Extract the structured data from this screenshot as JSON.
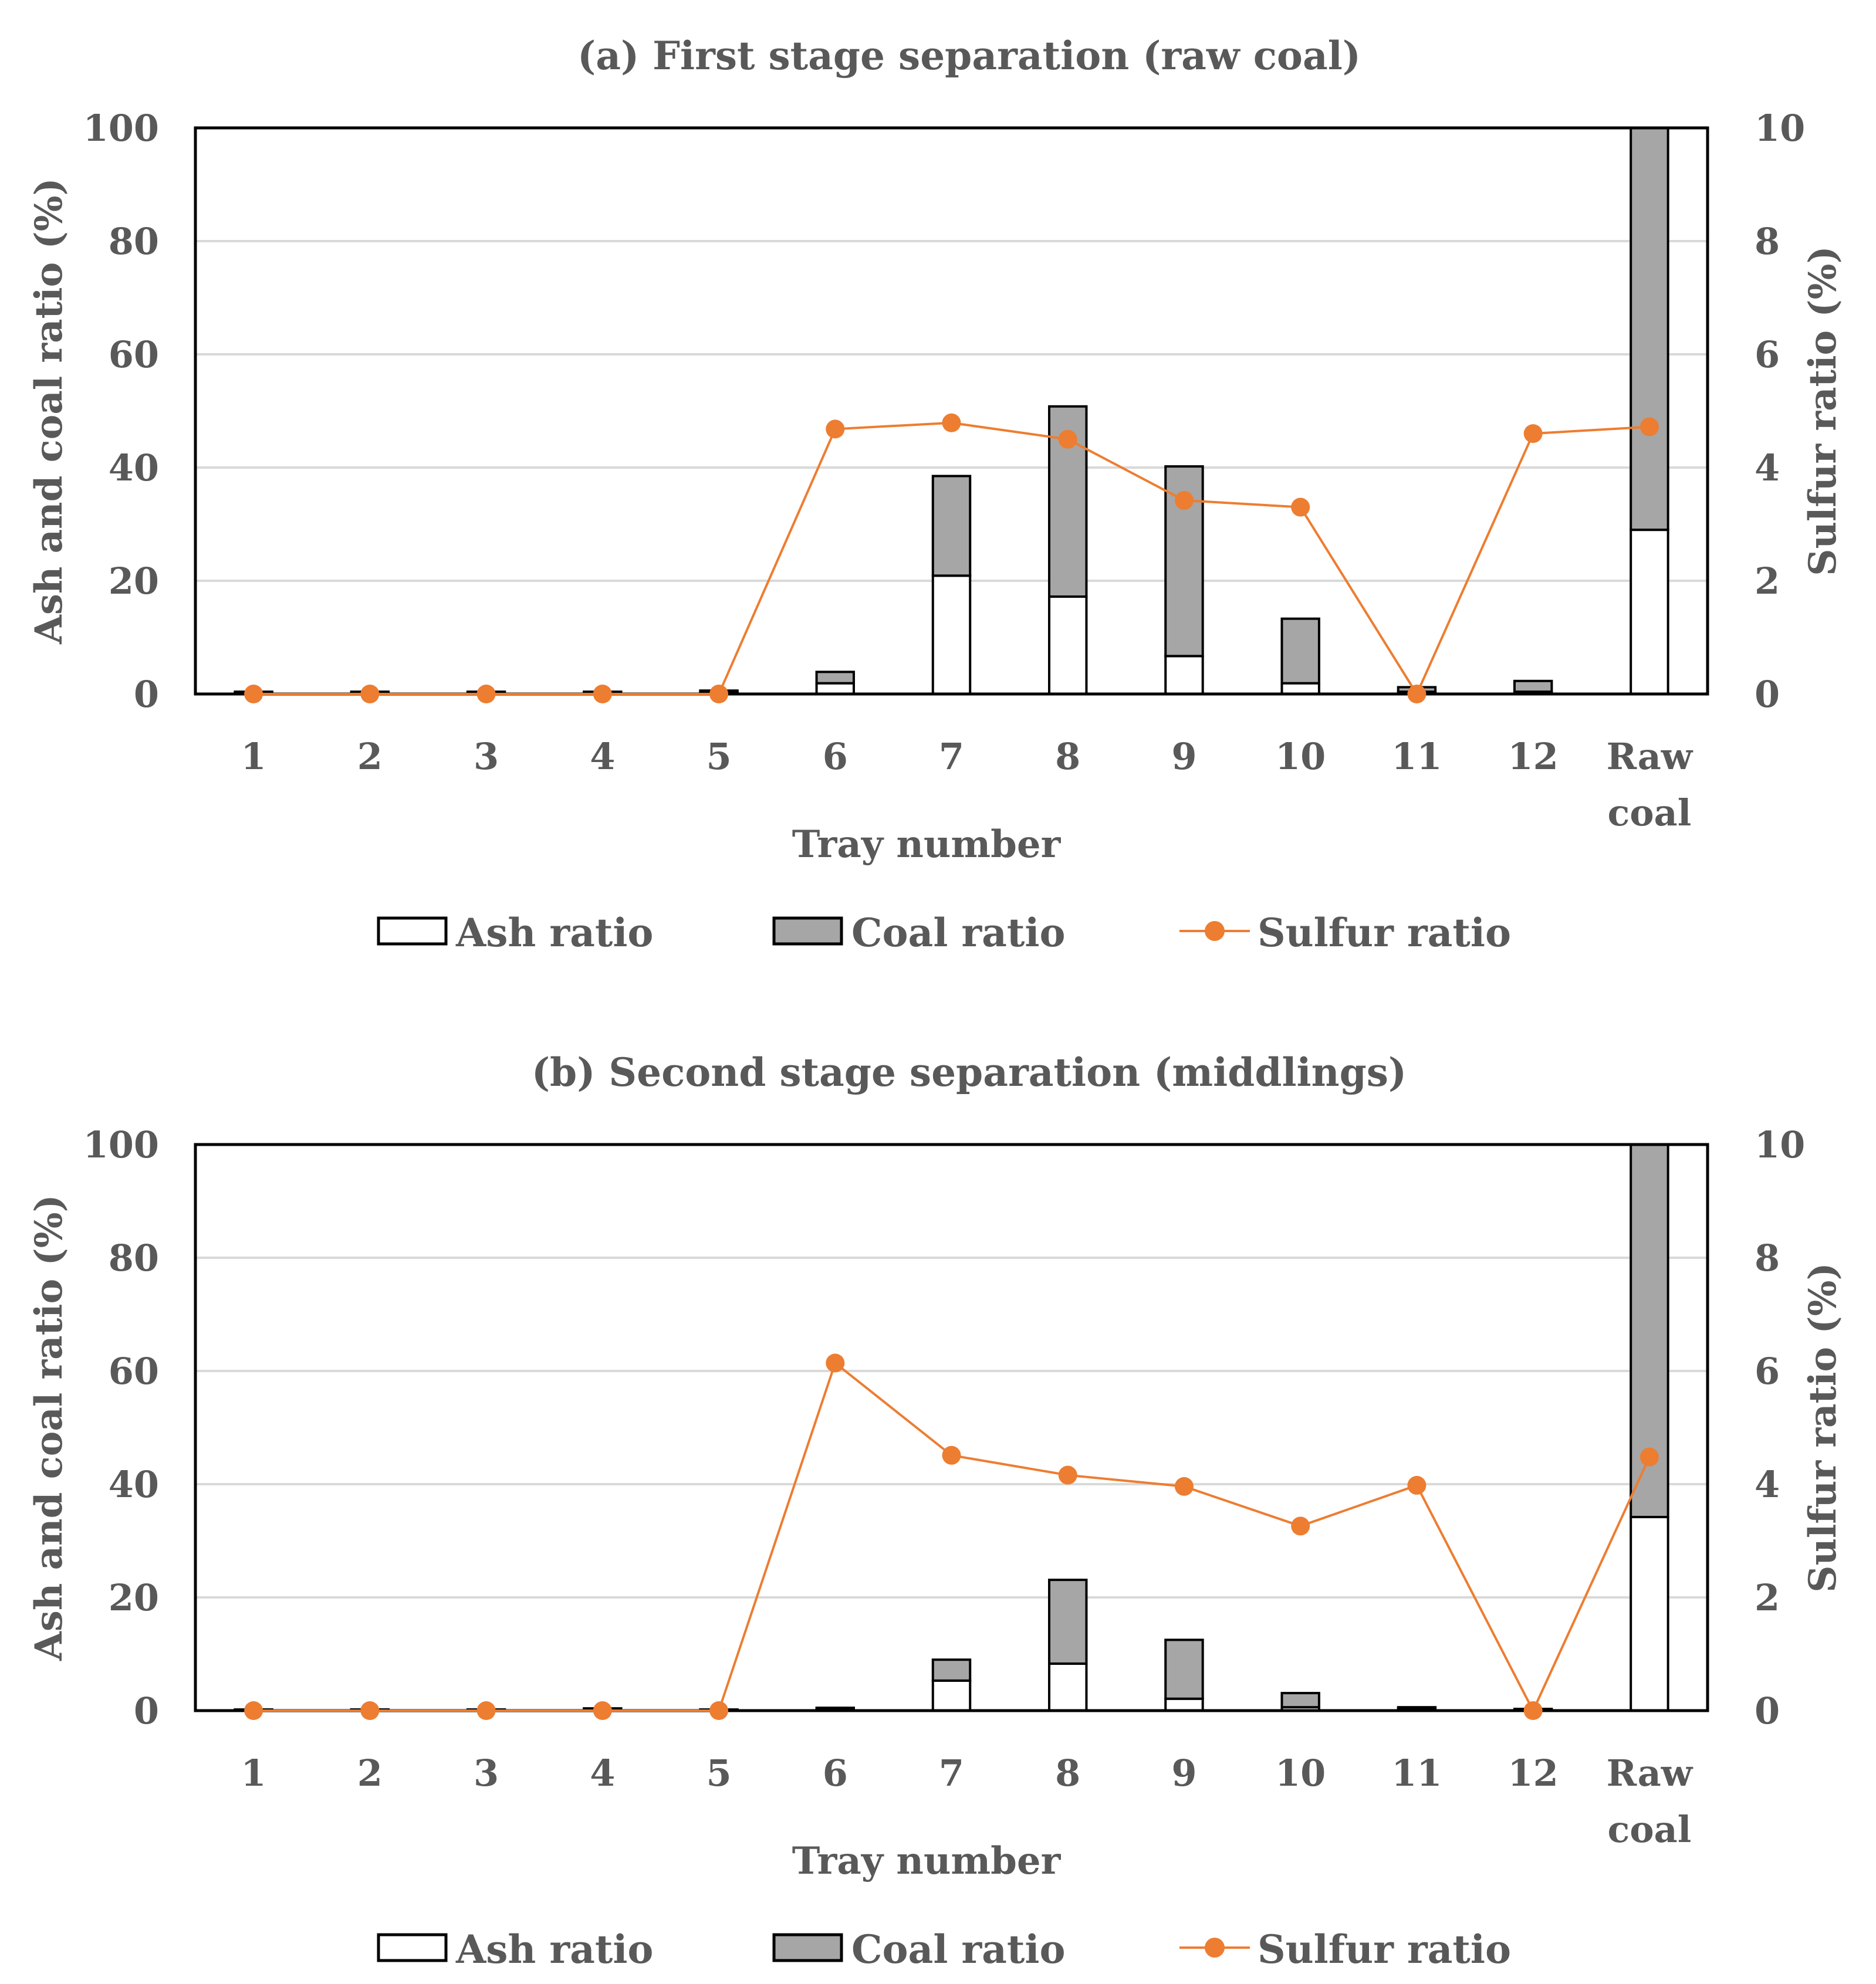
{
  "chart_data": [
    {
      "type": "bar",
      "title": "(a) First stage separation (raw coal)",
      "xlabel": "Tray number",
      "ylabel": "Ash  and coal ratio (%)",
      "y2label": "Sulfur ratio (%)",
      "categories": [
        "1",
        "2",
        "3",
        "4",
        "5",
        "6",
        "7",
        "8",
        "9",
        "10",
        "11",
        "12",
        "Raw coal"
      ],
      "category_lines": [
        [
          "1"
        ],
        [
          "2"
        ],
        [
          "3"
        ],
        [
          "4"
        ],
        [
          "5"
        ],
        [
          "6"
        ],
        [
          "7"
        ],
        [
          "8"
        ],
        [
          "9"
        ],
        [
          "10"
        ],
        [
          "11"
        ],
        [
          "12"
        ],
        [
          "Raw",
          "coal"
        ]
      ],
      "ylim": [
        0,
        100
      ],
      "y2lim": [
        0,
        10
      ],
      "yticks": [
        "0",
        "20",
        "40",
        "60",
        "80",
        "100"
      ],
      "y2ticks": [
        "0",
        "2",
        "4",
        "6",
        "8",
        "10"
      ],
      "grid": true,
      "stacked": true,
      "series": [
        {
          "name": "Ash ratio",
          "kind": "bar",
          "axis": "left",
          "values": [
            0.2,
            0.2,
            0.2,
            0.2,
            0.3,
            1.9,
            20.9,
            17.2,
            6.7,
            1.9,
            0.4,
            0.4,
            29.0
          ]
        },
        {
          "name": "Coal ratio",
          "kind": "bar",
          "axis": "left",
          "values": [
            0.2,
            0.2,
            0.2,
            0.2,
            0.3,
            2.0,
            17.6,
            33.6,
            33.5,
            11.4,
            0.8,
            1.9,
            71.0
          ]
        },
        {
          "name": "Sulfur ratio",
          "kind": "line",
          "axis": "right",
          "values": [
            0,
            0,
            0,
            0,
            0,
            4.68,
            4.79,
            4.5,
            3.42,
            3.3,
            0,
            4.6,
            4.72
          ]
        }
      ],
      "legend": [
        "Ash ratio",
        "Coal ratio",
        "Sulfur ratio"
      ],
      "legend_position": "bottom"
    },
    {
      "type": "bar",
      "title": "(b) Second stage separation (middlings)",
      "xlabel": "Tray number",
      "ylabel": "Ash and coal ratio (%)",
      "y2label": "Sulfur ratio (%)",
      "categories": [
        "1",
        "2",
        "3",
        "4",
        "5",
        "6",
        "7",
        "8",
        "9",
        "10",
        "11",
        "12",
        "Raw coal"
      ],
      "category_lines": [
        [
          "1"
        ],
        [
          "2"
        ],
        [
          "3"
        ],
        [
          "4"
        ],
        [
          "5"
        ],
        [
          "6"
        ],
        [
          "7"
        ],
        [
          "8"
        ],
        [
          "9"
        ],
        [
          "10"
        ],
        [
          "11"
        ],
        [
          "12"
        ],
        [
          "Raw",
          "coal"
        ]
      ],
      "ylim": [
        0,
        100
      ],
      "y2lim": [
        0,
        10
      ],
      "yticks": [
        "0",
        "20",
        "40",
        "60",
        "80",
        "100"
      ],
      "y2ticks": [
        "0",
        "2",
        "4",
        "6",
        "8",
        "10"
      ],
      "grid": true,
      "stacked": true,
      "series": [
        {
          "name": "Ash ratio",
          "kind": "bar",
          "axis": "left",
          "values": [
            0.1,
            0.1,
            0.1,
            0.2,
            0.1,
            0.2,
            5.3,
            8.3,
            2.1,
            0.6,
            0.2,
            0.1,
            34.2
          ]
        },
        {
          "name": "Coal ratio",
          "kind": "bar",
          "axis": "left",
          "values": [
            0.1,
            0.1,
            0.1,
            0.2,
            0.1,
            0.3,
            3.7,
            14.8,
            10.4,
            2.5,
            0.4,
            0.2,
            65.8
          ]
        },
        {
          "name": "Sulfur ratio",
          "kind": "line",
          "axis": "right",
          "values": [
            0,
            0,
            0,
            0,
            0,
            6.14,
            4.51,
            4.16,
            3.96,
            3.26,
            3.98,
            0,
            4.48
          ]
        }
      ],
      "legend": [
        "Ash ratio",
        "Coal ratio",
        "Sulfur ratio"
      ],
      "legend_position": "bottom"
    }
  ],
  "colors": {
    "ash": "#ffffff",
    "coal": "#a6a6a6",
    "sulfur": "#ed7d31",
    "grid": "#d9d9d9",
    "axis": "#000000",
    "text": "#595959"
  }
}
